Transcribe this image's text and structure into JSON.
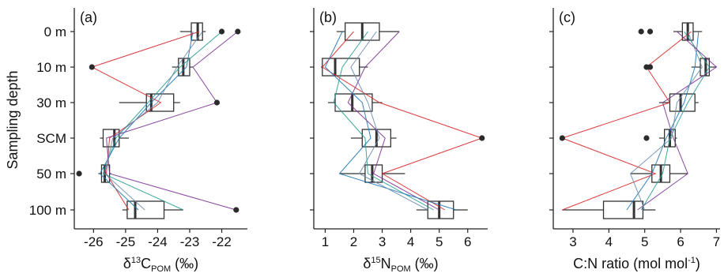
{
  "ylabel": "Sampling depth",
  "depth_categories": [
    "0 m",
    "10 m",
    "30 m",
    "SCM",
    "50 m",
    "100 m"
  ],
  "series_colors": [
    "#d62728",
    "#2a9d8f",
    "#7b3294",
    "#1f77b4",
    "#6a8caf"
  ],
  "chart_data": [
    {
      "type": "box",
      "panel": "(a)",
      "xlabel": {
        "main": "δ",
        "sup": "13",
        "base": "C",
        "sub": "POM",
        "unit": " (‰)"
      },
      "xlim": [
        -26.6,
        -21.2
      ],
      "xticks": [
        -26,
        -25,
        -24,
        -23,
        -22
      ],
      "categories": [
        "0 m",
        "10 m",
        "30 m",
        "SCM",
        "50 m",
        "100 m"
      ],
      "boxes": [
        {
          "q1": -22.95,
          "median": -22.75,
          "q3": -22.6,
          "whisker_low": -23.3,
          "whisker_high": -22.5
        },
        {
          "q1": -23.35,
          "median": -23.2,
          "q3": -23.0,
          "whisker_low": -23.55,
          "whisker_high": -22.9
        },
        {
          "q1": -24.35,
          "median": -24.2,
          "q3": -23.5,
          "whisker_low": -25.2,
          "whisker_high": -23.3
        },
        {
          "q1": -25.7,
          "median": -25.35,
          "q3": -25.2,
          "whisker_low": -25.8,
          "whisker_high": -24.9
        },
        {
          "q1": -25.75,
          "median": -25.65,
          "q3": -25.5,
          "whisker_low": -25.85,
          "whisker_high": -25.45
        },
        {
          "q1": -24.95,
          "median": -24.7,
          "q3": -23.8,
          "whisker_low": -25.1,
          "whisker_high": -23.2
        }
      ],
      "outliers": [
        {
          "category": "0 m",
          "value": -22.0
        },
        {
          "category": "0 m",
          "value": -21.5
        },
        {
          "category": "10 m",
          "value": -26.05
        },
        {
          "category": "30 m",
          "value": -22.15
        },
        {
          "category": "50 m",
          "value": -26.45
        },
        {
          "category": "100 m",
          "value": -21.55
        }
      ],
      "series": [
        {
          "values": [
            -22.7,
            -26.05,
            -23.9,
            -25.5,
            -25.6,
            -24.9
          ]
        },
        {
          "values": [
            -22.0,
            -23.3,
            -24.3,
            -25.3,
            -25.7,
            -23.2
          ]
        },
        {
          "values": [
            -21.5,
            -22.9,
            -22.15,
            -25.6,
            -25.5,
            -21.55
          ]
        },
        {
          "values": [
            -22.9,
            -23.1,
            -24.2,
            -25.2,
            -25.8,
            -24.6
          ]
        },
        {
          "values": [
            -22.6,
            -23.4,
            -24.0,
            -25.4,
            -25.65,
            -24.4
          ]
        }
      ]
    },
    {
      "type": "box",
      "panel": "(b)",
      "xlabel": {
        "main": "δ",
        "sup": "15",
        "base": "N",
        "sub": "POM",
        "unit": " (‰)"
      },
      "xlim": [
        0.6,
        6.7
      ],
      "xticks": [
        1,
        2,
        3,
        4,
        5,
        6
      ],
      "categories": [
        "0 m",
        "10 m",
        "30 m",
        "SCM",
        "50 m",
        "100 m"
      ],
      "boxes": [
        {
          "q1": 1.7,
          "median": 2.3,
          "q3": 2.9,
          "whisker_low": 1.4,
          "whisker_high": 3.6
        },
        {
          "q1": 0.9,
          "median": 1.35,
          "q3": 2.2,
          "whisker_low": 0.85,
          "whisker_high": 2.5
        },
        {
          "q1": 1.35,
          "median": 1.95,
          "q3": 2.65,
          "whisker_low": 1.1,
          "whisker_high": 3.0
        },
        {
          "q1": 2.3,
          "median": 2.8,
          "q3": 3.3,
          "whisker_low": 1.9,
          "whisker_high": 3.5
        },
        {
          "q1": 2.4,
          "median": 2.65,
          "q3": 3.0,
          "whisker_low": 1.5,
          "whisker_high": 3.8
        },
        {
          "q1": 4.6,
          "median": 5.0,
          "q3": 5.5,
          "whisker_low": 4.2,
          "whisker_high": 6.0
        }
      ],
      "outliers": [
        {
          "category": "SCM",
          "value": 6.5
        }
      ],
      "series": [
        {
          "values": [
            2.0,
            0.9,
            2.9,
            6.5,
            3.0,
            5.2
          ]
        },
        {
          "values": [
            2.5,
            1.6,
            1.3,
            2.4,
            2.5,
            4.8
          ]
        },
        {
          "values": [
            3.6,
            2.4,
            1.8,
            3.1,
            2.7,
            5.0
          ]
        },
        {
          "values": [
            1.6,
            1.0,
            2.3,
            2.6,
            1.5,
            5.6
          ]
        },
        {
          "values": [
            2.8,
            1.9,
            2.5,
            2.9,
            2.2,
            4.6
          ]
        }
      ]
    },
    {
      "type": "box",
      "panel": "(c)",
      "xlabel": {
        "main": "C:N ratio (mol mol",
        "sup": "-1",
        "tail": ")"
      },
      "xlim": [
        2.45,
        7.1
      ],
      "xticks": [
        3,
        4,
        5,
        6,
        7
      ],
      "categories": [
        "0 m",
        "10 m",
        "30 m",
        "SCM",
        "50 m",
        "100 m"
      ],
      "boxes": [
        {
          "q1": 6.05,
          "median": 6.2,
          "q3": 6.35,
          "whisker_low": 5.8,
          "whisker_high": 6.6
        },
        {
          "q1": 6.55,
          "median": 6.7,
          "q3": 6.8,
          "whisker_low": 6.3,
          "whisker_high": 7.0
        },
        {
          "q1": 5.7,
          "median": 6.0,
          "q3": 6.4,
          "whisker_low": 5.4,
          "whisker_high": 6.5
        },
        {
          "q1": 5.55,
          "median": 5.7,
          "q3": 5.85,
          "whisker_low": 5.4,
          "whisker_high": 5.9
        },
        {
          "q1": 5.2,
          "median": 5.45,
          "q3": 5.7,
          "whisker_low": 4.6,
          "whisker_high": 6.2
        },
        {
          "q1": 3.85,
          "median": 4.7,
          "q3": 4.95,
          "whisker_low": 2.7,
          "whisker_high": 5.3
        }
      ],
      "outliers": [
        {
          "category": "0 m",
          "value": 4.9
        },
        {
          "category": "0 m",
          "value": 5.15
        },
        {
          "category": "10 m",
          "value": 5.05
        },
        {
          "category": "10 m",
          "value": 5.15
        },
        {
          "category": "SCM",
          "value": 2.7
        },
        {
          "category": "SCM",
          "value": 5.05
        }
      ],
      "series": [
        {
          "values": [
            6.3,
            5.05,
            5.7,
            2.7,
            5.3,
            2.7
          ]
        },
        {
          "values": [
            6.1,
            6.8,
            6.2,
            5.7,
            5.5,
            4.9
          ]
        },
        {
          "values": [
            5.9,
            7.0,
            5.5,
            5.8,
            6.2,
            4.8
          ]
        },
        {
          "values": [
            6.5,
            6.4,
            6.1,
            5.6,
            5.2,
            4.5
          ]
        },
        {
          "values": [
            6.2,
            6.6,
            5.9,
            5.75,
            4.6,
            5.0
          ]
        }
      ]
    }
  ]
}
